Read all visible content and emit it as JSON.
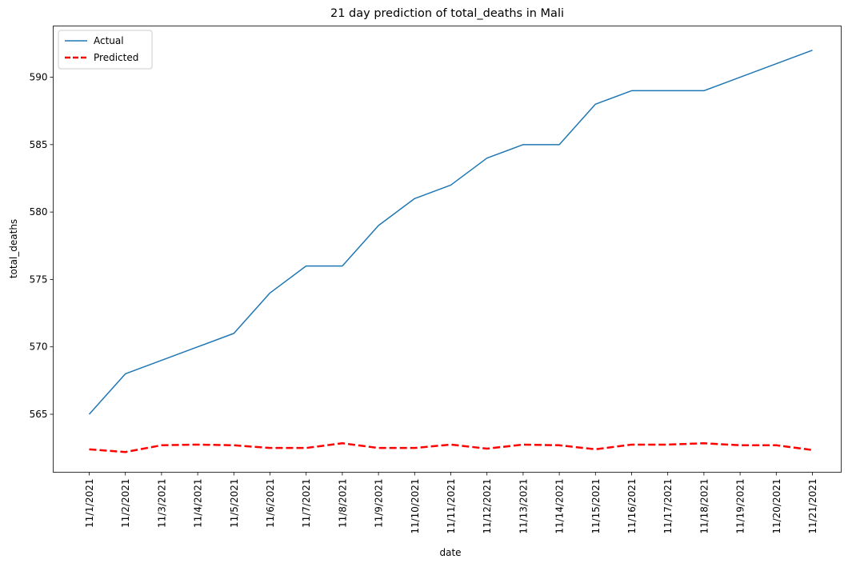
{
  "chart_data": {
    "type": "line",
    "title": "21 day prediction of total_deaths in Mali",
    "xlabel": "date",
    "ylabel": "total_deaths",
    "x": [
      "11/1/2021",
      "11/2/2021",
      "11/3/2021",
      "11/4/2021",
      "11/5/2021",
      "11/6/2021",
      "11/7/2021",
      "11/8/2021",
      "11/9/2021",
      "11/10/2021",
      "11/11/2021",
      "11/12/2021",
      "11/13/2021",
      "11/14/2021",
      "11/15/2021",
      "11/16/2021",
      "11/17/2021",
      "11/18/2021",
      "11/19/2021",
      "11/20/2021",
      "11/21/2021"
    ],
    "ylim": [
      560.7,
      593.8
    ],
    "yticks": [
      565,
      570,
      575,
      580,
      585,
      590
    ],
    "grid": false,
    "legend": "top-left",
    "series": [
      {
        "name": "Actual",
        "color": "#1f77b4",
        "style": "solid",
        "values": [
          565,
          568,
          569,
          570,
          571,
          574,
          576,
          576,
          579,
          581,
          582,
          584,
          585,
          585,
          588,
          589,
          589,
          589,
          590,
          591,
          592
        ]
      },
      {
        "name": "Predicted",
        "color": "#ff0000",
        "style": "dashed",
        "values": [
          562.4,
          562.2,
          562.7,
          562.75,
          562.7,
          562.5,
          562.5,
          562.85,
          562.5,
          562.5,
          562.75,
          562.45,
          562.75,
          562.7,
          562.4,
          562.75,
          562.75,
          562.85,
          562.7,
          562.7,
          562.35
        ]
      }
    ]
  }
}
